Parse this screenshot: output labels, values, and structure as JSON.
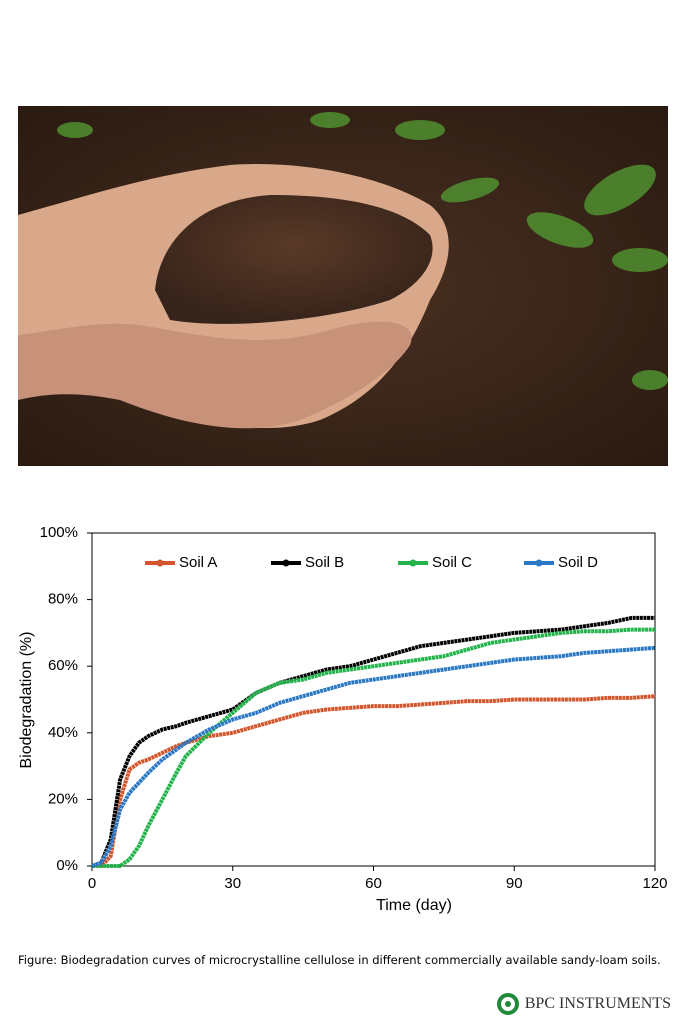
{
  "chart_data": {
    "type": "line",
    "x_label": "Time (day)",
    "y_label": "Biodegradation (%)",
    "x": [
      0,
      2,
      4,
      6,
      8,
      10,
      12,
      15,
      18,
      20,
      25,
      30,
      35,
      40,
      45,
      50,
      55,
      60,
      65,
      70,
      75,
      80,
      85,
      90,
      95,
      100,
      105,
      110,
      115,
      120
    ],
    "series": [
      {
        "name": "Soil A",
        "color": "#d4552b",
        "values": [
          0,
          0,
          3,
          20,
          29,
          31,
          32,
          34,
          36,
          37,
          39,
          40,
          42,
          44,
          46,
          47,
          47.5,
          48,
          48,
          48.5,
          49,
          49.5,
          49.5,
          50,
          50,
          50,
          50,
          50.5,
          50.5,
          51
        ]
      },
      {
        "name": "Soil B",
        "color": "#000000",
        "values": [
          0,
          1,
          8,
          26,
          33,
          37,
          39,
          41,
          42,
          43,
          45,
          47,
          52,
          55,
          57,
          59,
          60,
          62,
          64,
          66,
          67,
          68,
          69,
          70,
          70.5,
          71,
          72,
          73,
          74.5,
          74.5
        ]
      },
      {
        "name": "Soil C",
        "color": "#22b34a",
        "values": [
          0,
          0,
          0,
          0,
          2,
          6,
          12,
          20,
          28,
          33,
          40,
          46,
          52,
          55,
          56,
          58,
          59,
          60,
          61,
          62,
          63,
          65,
          67,
          68,
          69,
          70,
          70.5,
          70.5,
          71,
          71
        ]
      },
      {
        "name": "Soil D",
        "color": "#2a78c4",
        "values": [
          0,
          1,
          6,
          17,
          22,
          25,
          28,
          32,
          35,
          37,
          41,
          44,
          46,
          49,
          51,
          53,
          55,
          56,
          57,
          58,
          59,
          60,
          61,
          62,
          62.5,
          63,
          64,
          64.5,
          65,
          65.5
        ]
      }
    ],
    "xlim": [
      0,
      120
    ],
    "xticks": [
      0,
      30,
      60,
      90,
      120
    ],
    "ylim": [
      0,
      100
    ],
    "yticks": [
      {
        "value": 0,
        "label": "0%"
      },
      {
        "value": 20,
        "label": "20%"
      },
      {
        "value": 40,
        "label": "40%"
      },
      {
        "value": 60,
        "label": "60%"
      },
      {
        "value": 80,
        "label": "80%"
      },
      {
        "value": 100,
        "label": "100%"
      }
    ],
    "legend": "top"
  },
  "caption": "Figure: Biodegradation curves of microcrystalline cellulose in different commercially available sandy-loam soils.",
  "logo": "BPC INSTRUMENTS"
}
